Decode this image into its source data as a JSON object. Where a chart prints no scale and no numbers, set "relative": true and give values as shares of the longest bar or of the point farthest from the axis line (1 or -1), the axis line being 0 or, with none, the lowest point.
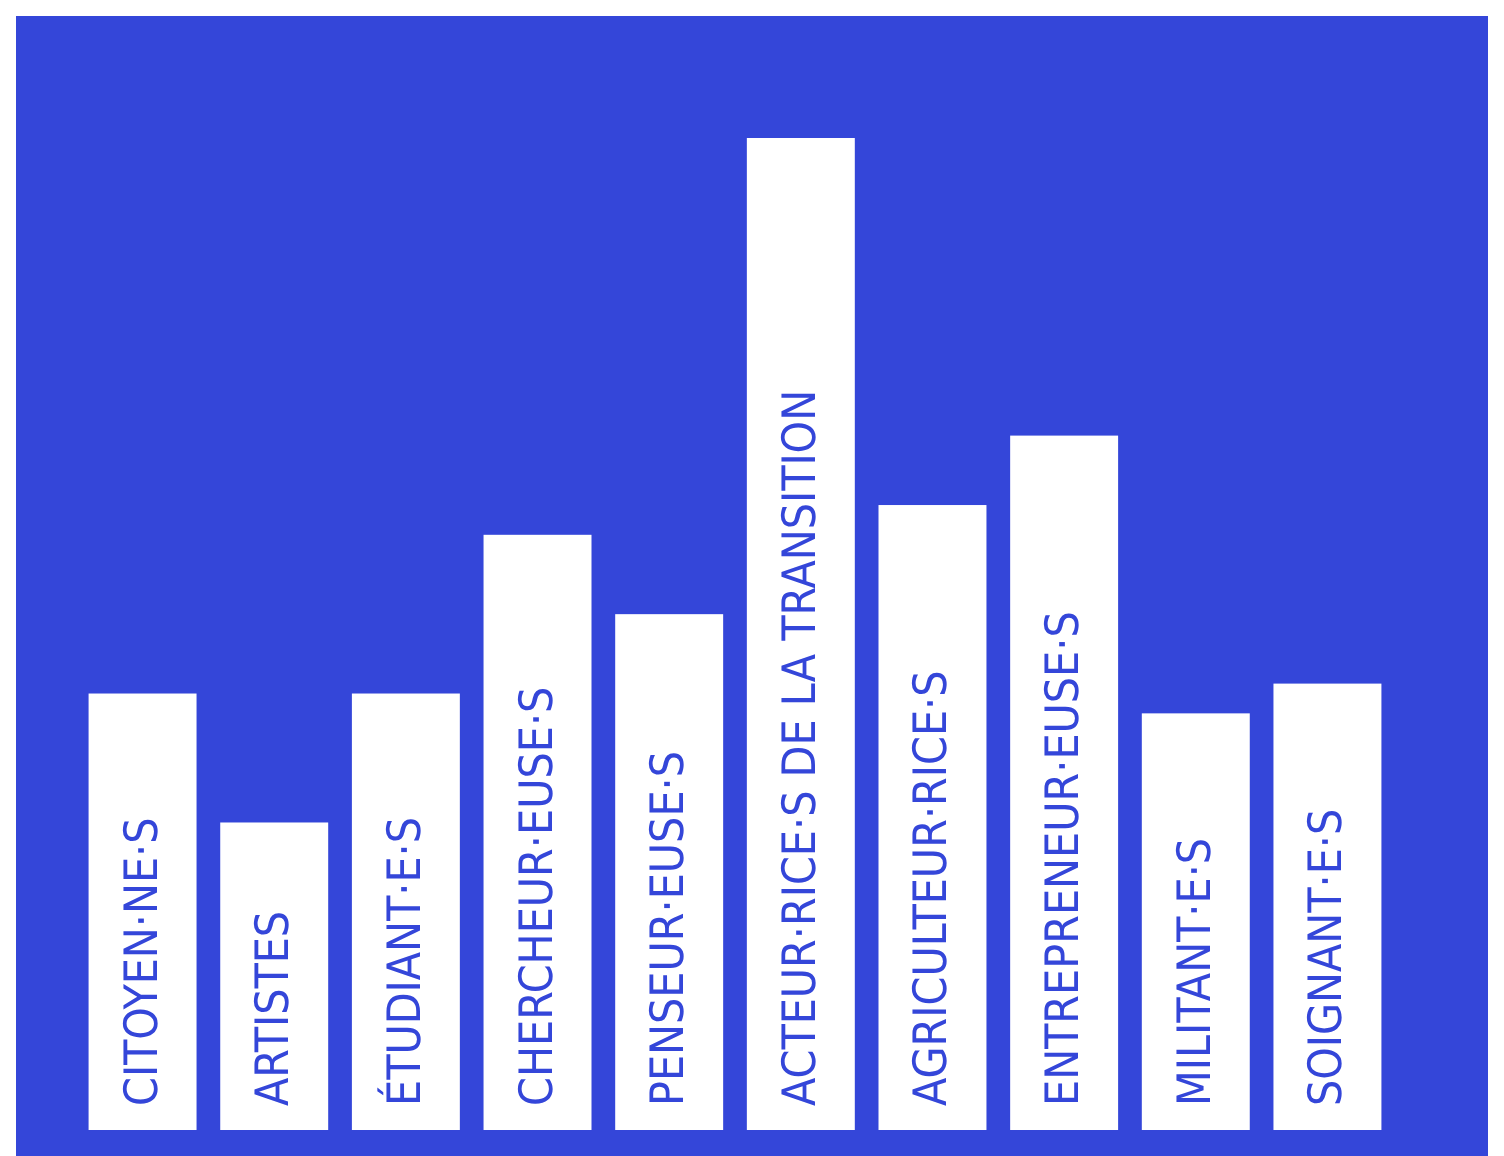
{
  "chart_data": {
    "type": "bar",
    "relative": true,
    "categories": [
      "CITOYEN·NE·S",
      "ARTISTES",
      "ÉTUDIANT·E·S",
      "CHERCHEUR·EUSE·S",
      "PENSEUR·EUSE·S",
      "ACTEUR·RICE·S DE LA TRANSITION",
      "AGRICULTEUR·RICE·S",
      "ENTREPRENEUR·EUSE·S",
      "MILITANT·E·S",
      "SOIGNANT·E·S"
    ],
    "values": [
      0.44,
      0.31,
      0.44,
      0.6,
      0.52,
      1,
      0.63,
      0.7,
      0.42,
      0.45
    ],
    "color": "#ffffff"
  }
}
